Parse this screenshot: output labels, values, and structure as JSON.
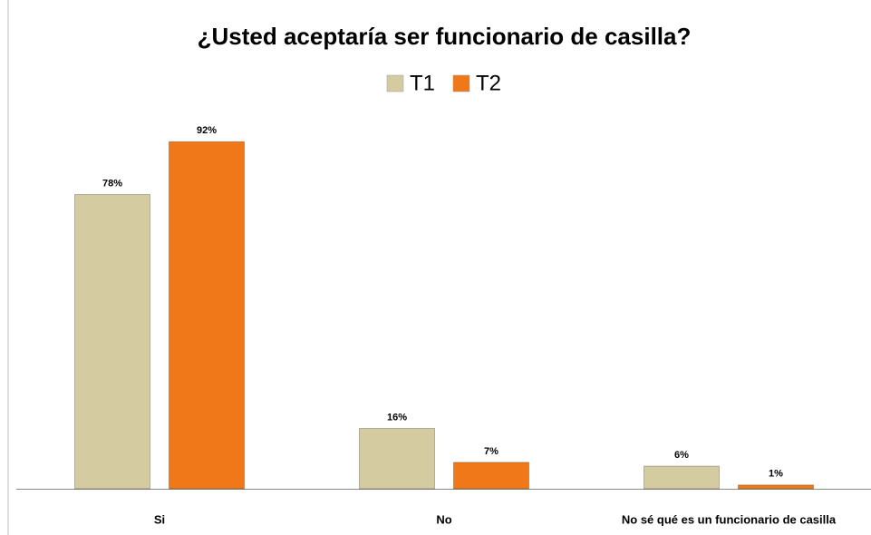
{
  "chart_data": {
    "type": "bar",
    "title": "¿Usted aceptaría ser funcionario de casilla?",
    "categories": [
      "Si",
      "No",
      "No sé qué es un funcionario de casilla"
    ],
    "series": [
      {
        "name": "T1",
        "color": "#d4cba0",
        "values": [
          78,
          16,
          6
        ],
        "value_labels": [
          "78%",
          "16%",
          "6%"
        ]
      },
      {
        "name": "T2",
        "color": "#f07818",
        "values": [
          92,
          7,
          1
        ],
        "value_labels": [
          "92%",
          "7%",
          "1%"
        ]
      }
    ]
  }
}
